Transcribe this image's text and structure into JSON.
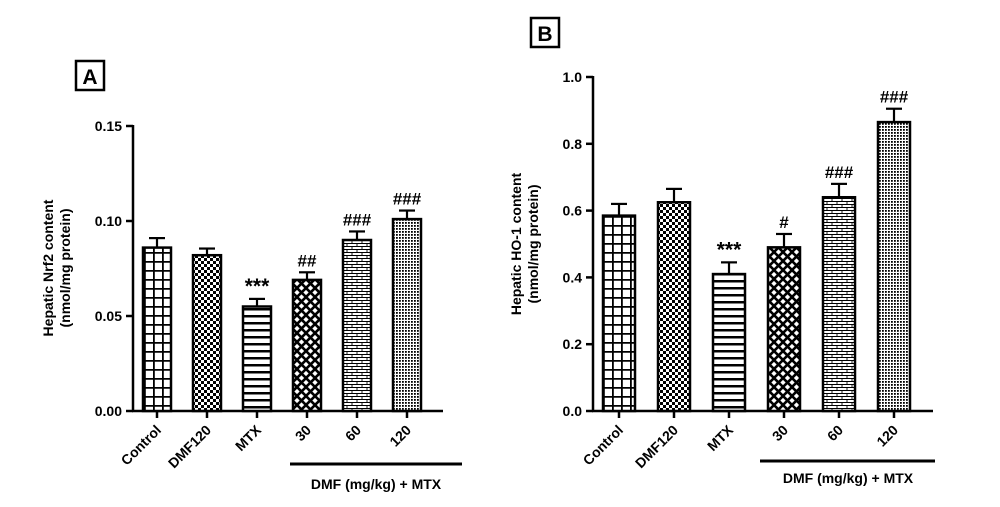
{
  "chart_data": [
    {
      "type": "bar",
      "panel_label": "A",
      "categories": [
        "Control",
        "DMF120",
        "MTX",
        "30",
        "60",
        "120"
      ],
      "values": [
        0.086,
        0.082,
        0.055,
        0.069,
        0.09,
        0.101
      ],
      "errors": [
        0.005,
        0.0035,
        0.004,
        0.004,
        0.0045,
        0.0045
      ],
      "annotations": [
        "",
        "",
        "***",
        "##",
        "###",
        "###"
      ],
      "ylabel_line1": "Hepatic Nrf2 content",
      "ylabel_line2": "(nmol/mg protein)",
      "ylim": [
        0,
        0.15
      ],
      "yticks": [
        "0.00",
        "0.05",
        "0.10",
        "0.15"
      ],
      "group_label": "DMF (mg/kg) + MTX",
      "patterns": [
        "grid",
        "checker",
        "hlines",
        "cross",
        "brick",
        "dots"
      ]
    },
    {
      "type": "bar",
      "panel_label": "B",
      "categories": [
        "Control",
        "DMF120",
        "MTX",
        "30",
        "60",
        "120"
      ],
      "values": [
        0.585,
        0.625,
        0.41,
        0.49,
        0.64,
        0.865
      ],
      "errors": [
        0.035,
        0.04,
        0.035,
        0.04,
        0.04,
        0.04
      ],
      "annotations": [
        "",
        "",
        "***",
        "#",
        "###",
        "###"
      ],
      "ylabel_line1": "Hepatic HO-1 content",
      "ylabel_line2": "(nmol/mg protein)",
      "ylim": [
        0,
        1.0
      ],
      "yticks": [
        "0.0",
        "0.2",
        "0.4",
        "0.6",
        "0.8",
        "1.0"
      ],
      "group_label": "DMF (mg/kg) + MTX",
      "patterns": [
        "grid",
        "checker",
        "hlines",
        "cross",
        "brick",
        "dots"
      ]
    }
  ]
}
